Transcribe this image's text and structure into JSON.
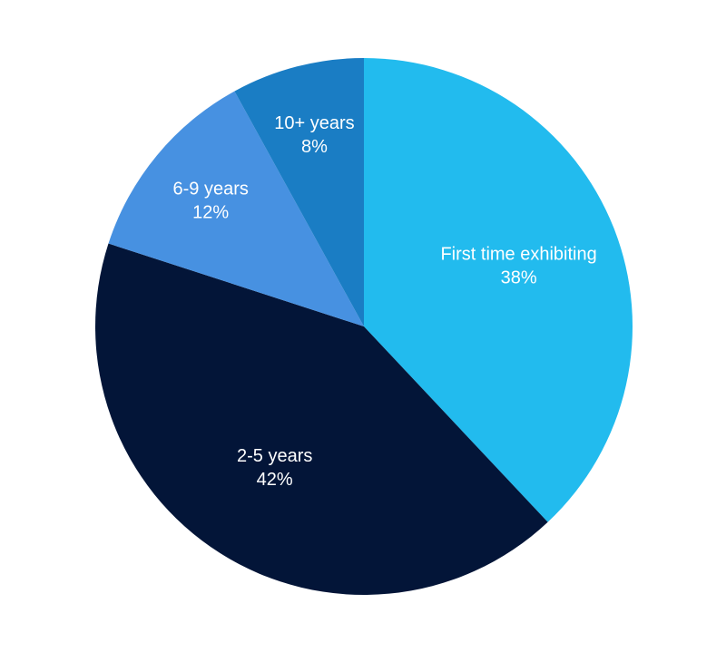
{
  "chart_data": {
    "type": "pie",
    "start_angle_deg": 0,
    "direction": "clockwise",
    "slices": [
      {
        "label": "First time exhibiting",
        "value": 38,
        "value_label": "38%",
        "color": "#22bbee"
      },
      {
        "label": "2-5 years",
        "value": 42,
        "value_label": "42%",
        "color": "#031538"
      },
      {
        "label": "6-9 years",
        "value": 12,
        "value_label": "12%",
        "color": "#4791e1"
      },
      {
        "label": "10+ years",
        "value": 8,
        "value_label": "8%",
        "color": "#1a7dc4"
      }
    ]
  }
}
